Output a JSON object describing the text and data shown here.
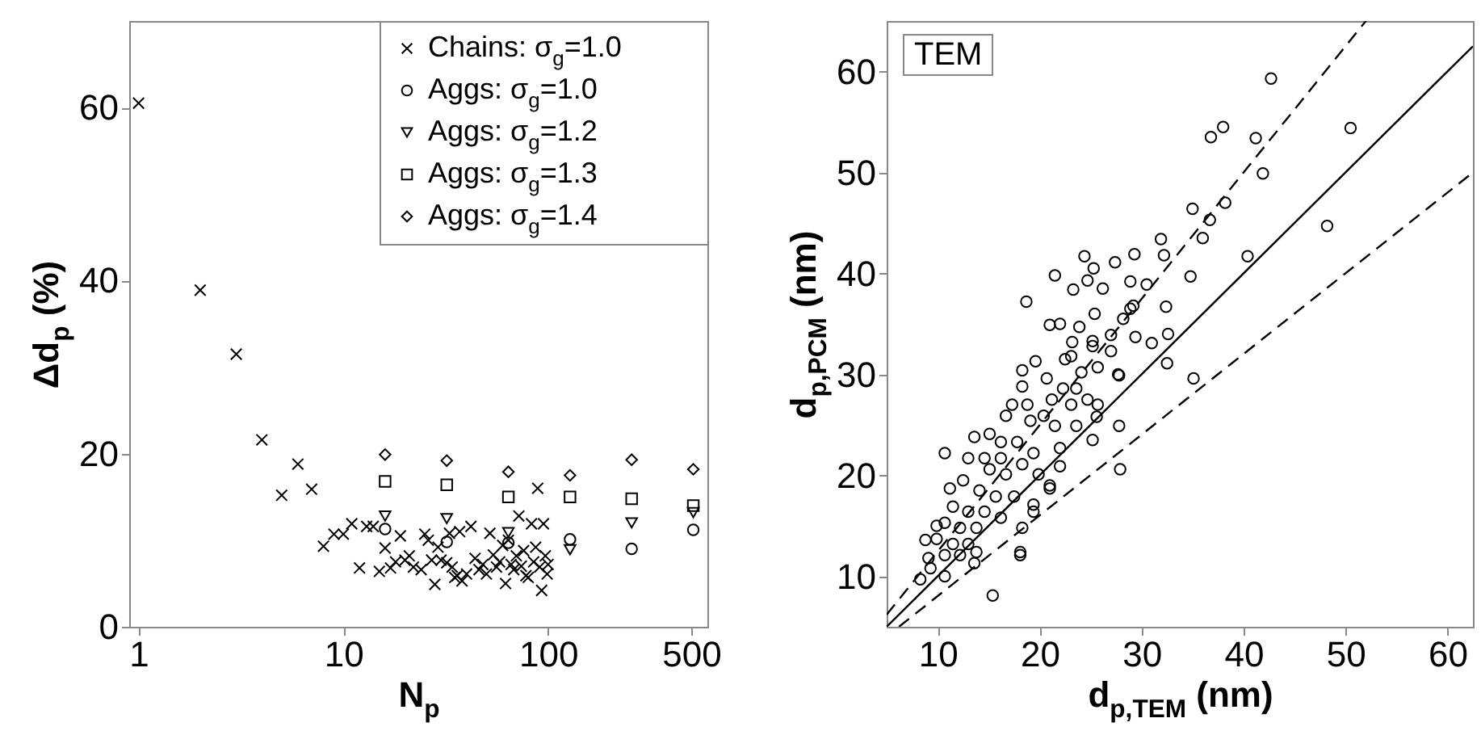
{
  "chart_data": [
    {
      "type": "scatter",
      "xlabel": "N$_{p}$",
      "ylabel": "Δd$_{p}$ (%)",
      "log": "x",
      "xlim": [
        0.9,
        600
      ],
      "xticks": [
        1,
        10,
        100,
        500
      ],
      "ylim": [
        0,
        70
      ],
      "yticks": [
        0,
        20,
        40,
        60
      ],
      "legend": "top right",
      "series": [
        {
          "name": "Chains: σ$_{g}$=1.0",
          "color": "#000000",
          "marker": "cross",
          "x": [
            1,
            2,
            3,
            4,
            5,
            6,
            7,
            8,
            9,
            10,
            11,
            12,
            13,
            14,
            15,
            16,
            17,
            18,
            19,
            20,
            21,
            22,
            24,
            25,
            26,
            27,
            28,
            29,
            30,
            32,
            33,
            34,
            35,
            36,
            37,
            38,
            40,
            42,
            44,
            46,
            48,
            50,
            52,
            54,
            56,
            58,
            60,
            62,
            64,
            66,
            68,
            70,
            72,
            74,
            76,
            78,
            80,
            83,
            85,
            87,
            89,
            91,
            93,
            95,
            97,
            99,
            100
          ],
          "values": [
            60.5,
            38.9,
            31.5,
            21.6,
            15.2,
            18.8,
            15.9,
            9.3,
            10.7,
            10.7,
            11.9,
            6.8,
            11.6,
            11.6,
            6.4,
            9.1,
            6.8,
            7.5,
            10.5,
            7.7,
            8.2,
            6.9,
            6.6,
            10.7,
            10.0,
            7.7,
            4.9,
            9.2,
            7.7,
            7.4,
            10.8,
            6.9,
            5.7,
            5.9,
            11.0,
            5.3,
            6.1,
            11.6,
            7.9,
            6.6,
            7.2,
            6.1,
            10.8,
            8.3,
            6.9,
            7.5,
            9.4,
            5.0,
            10.0,
            7.2,
            6.6,
            8.2,
            12.8,
            7.0,
            8.8,
            5.9,
            5.7,
            11.9,
            7.5,
            9.2,
            16.0,
            6.9,
            4.2,
            11.9,
            8.2,
            6.1,
            7.2
          ]
        },
        {
          "name": "Aggs: σ$_{g}$=1.0",
          "color": "#000000",
          "marker": "circle",
          "x": [
            16,
            32,
            64,
            128,
            256,
            512
          ],
          "values": [
            11.3,
            9.8,
            9.7,
            10.1,
            9.0,
            11.2
          ]
        },
        {
          "name": "Aggs: σ$_{g}$=1.2",
          "color": "#000000",
          "marker": "triangle",
          "x": [
            16,
            32,
            64,
            128,
            256,
            512
          ],
          "values": [
            12.8,
            12.5,
            10.9,
            8.9,
            12.0,
            13.2
          ]
        },
        {
          "name": "Aggs: σ$_{g}$=1.3",
          "color": "#000000",
          "marker": "square",
          "x": [
            16,
            32,
            64,
            128,
            256,
            512
          ],
          "values": [
            16.8,
            16.4,
            15.0,
            15.0,
            14.8,
            14.0
          ]
        },
        {
          "name": "Aggs: σ$_{g}$=1.4",
          "color": "#000000",
          "marker": "diamond",
          "x": [
            16,
            32,
            64,
            128,
            256,
            512
          ],
          "values": [
            19.9,
            19.2,
            17.9,
            17.5,
            19.3,
            18.2
          ]
        }
      ]
    },
    {
      "type": "scatter",
      "xlabel": "d$_{p,TEM}$ (nm)",
      "ylabel": "d$_{p,PCM}$ (nm)",
      "xlim": [
        5,
        62.5
      ],
      "xticks": [
        10,
        20,
        30,
        40,
        50,
        60
      ],
      "ylim": [
        5,
        65
      ],
      "yticks": [
        10,
        20,
        30,
        40,
        50,
        60
      ],
      "annotations": [
        "TEM"
      ],
      "series": [
        {
          "color": "#000000",
          "marker": "circle",
          "x": [
            42.7,
            50.5,
            36.8,
            38.0,
            41.2,
            41.9,
            38.2,
            35.0,
            36.7,
            48.2,
            36.0,
            31.9,
            40.4,
            32.2,
            29.3,
            24.4,
            27.4,
            25.3,
            34.8,
            30.5,
            24.7,
            23.3,
            26.2,
            28.9,
            32.4,
            29.2,
            25.4,
            28.2,
            23.9,
            32.6,
            27.0,
            31.0,
            23.2,
            29.4,
            25.2,
            32.5,
            35.1,
            27.8,
            25.7,
            23.6,
            22.5,
            18.7,
            21.5,
            21.0,
            22.0,
            18.3,
            19.6,
            20.7,
            18.3,
            17.3,
            18.8,
            16.7,
            19.1,
            20.4,
            21.5,
            15.1,
            16.2,
            17.8,
            19.4,
            13.6,
            13.0,
            14.6,
            16.2,
            15.1,
            16.7,
            18.3,
            19.9,
            21.0,
            22.0,
            27.9,
            10.7,
            12.5,
            14.1,
            15.7,
            17.5,
            11.2,
            11.5,
            13.0,
            14.6,
            16.2,
            13.8,
            12.2,
            9.9,
            10.7,
            13.0,
            11.5,
            9.9,
            8.8,
            13.8,
            12.2,
            10.7,
            9.1,
            9.3,
            8.3,
            10.7,
            13.6,
            15.4,
            18.1,
            18.1,
            19.4,
            19.4,
            18.3,
            21.0,
            22.0,
            23.6,
            23.1,
            24.7,
            25.7,
            25.6,
            25.2,
            27.8,
            27.7,
            27.0,
            28.9,
            25.2,
            24.1,
            23.1,
            22.3,
            21.2
          ],
          "values": [
            59.3,
            54.4,
            53.5,
            54.5,
            53.4,
            49.9,
            47.0,
            46.4,
            45.3,
            44.7,
            43.5,
            43.4,
            41.7,
            41.8,
            41.9,
            41.7,
            41.1,
            40.5,
            39.7,
            38.9,
            39.3,
            38.4,
            38.5,
            39.2,
            36.7,
            36.8,
            36.0,
            35.5,
            34.7,
            34.0,
            33.9,
            33.1,
            33.2,
            33.7,
            32.8,
            31.1,
            29.6,
            29.9,
            30.7,
            28.6,
            31.5,
            37.2,
            39.8,
            34.9,
            35.0,
            30.4,
            31.3,
            29.6,
            28.8,
            27.0,
            27.0,
            25.9,
            25.4,
            25.9,
            24.9,
            24.1,
            23.3,
            23.3,
            22.2,
            23.8,
            21.7,
            21.7,
            21.7,
            20.6,
            20.1,
            21.1,
            20.1,
            19.0,
            20.9,
            20.6,
            22.2,
            19.5,
            18.5,
            17.9,
            17.9,
            18.7,
            16.9,
            16.4,
            16.4,
            15.8,
            14.8,
            14.8,
            15.0,
            15.3,
            13.2,
            13.2,
            13.7,
            13.6,
            12.4,
            12.1,
            12.1,
            11.8,
            10.8,
            9.7,
            10.0,
            11.3,
            8.1,
            12.4,
            12.1,
            17.1,
            16.4,
            14.8,
            18.7,
            22.7,
            24.9,
            27.0,
            27.5,
            27.0,
            25.8,
            23.5,
            24.9,
            30.0,
            32.3,
            36.5,
            33.3,
            30.2,
            31.8,
            28.6,
            27.5
          ]
        },
        {
          "type": "line",
          "color": "#000000",
          "line_style": "solid",
          "x": [
            5,
            62.5
          ],
          "values": [
            5,
            62.5
          ]
        },
        {
          "type": "line",
          "color": "#000000",
          "line_style": "dashed",
          "x": [
            5,
            52
          ],
          "values": [
            6.2,
            65
          ]
        },
        {
          "type": "line",
          "color": "#000000",
          "line_style": "dashed",
          "x": [
            6.2,
            62.5
          ],
          "values": [
            5,
            50
          ]
        }
      ]
    }
  ]
}
